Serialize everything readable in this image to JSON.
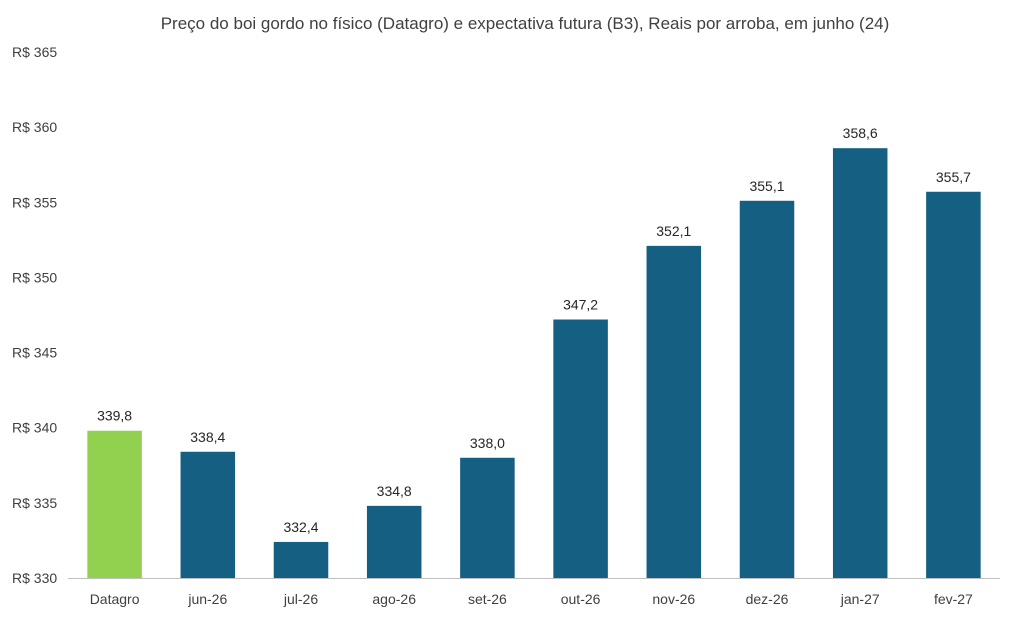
{
  "chart_data": {
    "type": "bar",
    "title": "Preço do boi gordo no físico (Datagro)  e expectativa futura (B3), Reais por arroba, em junho (24)",
    "xlabel": "",
    "ylabel": "",
    "ylim": [
      330,
      365
    ],
    "y_ticks": [
      330,
      335,
      340,
      345,
      350,
      355,
      360,
      365
    ],
    "y_tick_prefix": "R$ ",
    "grid": false,
    "legend": "none",
    "categories": [
      "Datagro",
      "jun-26",
      "jul-26",
      "ago-26",
      "set-26",
      "out-26",
      "nov-26",
      "dez-26",
      "jan-27",
      "fev-27"
    ],
    "values": [
      339.8,
      338.4,
      332.4,
      334.8,
      338.0,
      347.2,
      352.1,
      355.1,
      358.6,
      355.7
    ],
    "data_labels": [
      "339,8",
      "338,4",
      "332,4",
      "334,8",
      "338,0",
      "347,2",
      "352,1",
      "355,1",
      "358,6",
      "355,7"
    ],
    "colors": {
      "highlight": "#92D050",
      "default": "#155F82",
      "axis": "#BFBFBF"
    },
    "highlight_index": 0
  }
}
